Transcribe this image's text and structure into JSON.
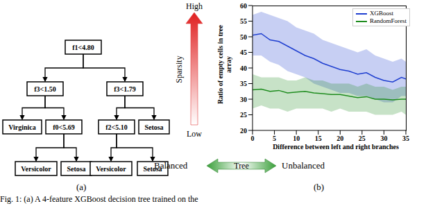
{
  "panel_labels": [
    "(a)",
    "(b)"
  ],
  "caption": "Fig. 1: (a) A 4-feature XGBoost decision tree trained on the",
  "tree": {
    "label": "f1<4.80",
    "children": [
      {
        "label": "f3<1.50",
        "children": [
          {
            "label": "Virginica"
          },
          {
            "label": "f0<5.69",
            "children": [
              {
                "label": "Versicolor"
              },
              {
                "label": "Setosa"
              }
            ]
          }
        ]
      },
      {
        "label": "f3<1.79",
        "children": [
          {
            "label": "f2<5.10",
            "children": [
              {
                "label": "Versicolor"
              },
              {
                "label": "Setosa"
              }
            ]
          },
          {
            "label": "Setosa"
          }
        ]
      }
    ]
  },
  "sparsity": {
    "label": "Sparsity",
    "high": "High",
    "low": "Low"
  },
  "balance": {
    "left": "Balanced",
    "center": "Tree",
    "right": "Unbalanced"
  },
  "chart_data": {
    "type": "line",
    "x_label": "Difference between left and right branches",
    "y_label": "Ratio of empty cells in tree array",
    "x": [
      0,
      2,
      4,
      6,
      8,
      10,
      12,
      14,
      16,
      18,
      20,
      22,
      24,
      26,
      28,
      30,
      32,
      34,
      35
    ],
    "series": [
      {
        "name": "XGBoost",
        "color": "#1f3fd0",
        "values": [
          50.5,
          51,
          49,
          48.5,
          47,
          45.5,
          44,
          43,
          41.5,
          40.5,
          39.5,
          39,
          38,
          38.5,
          37,
          36,
          35.5,
          37,
          36.5
        ],
        "lower": [
          44,
          44,
          42,
          41,
          39,
          38,
          37,
          35,
          34,
          33,
          32,
          32,
          31,
          31,
          30,
          29,
          29,
          31,
          31
        ],
        "upper": [
          57,
          58,
          57,
          56,
          55,
          53,
          52,
          51,
          49,
          48,
          47,
          46,
          45,
          46,
          44,
          43,
          42,
          43,
          42
        ]
      },
      {
        "name": "RandomForest",
        "color": "#1e8c1e",
        "values": [
          33,
          33.2,
          32.5,
          32.8,
          32,
          32.3,
          32.5,
          32,
          31.8,
          31.5,
          31.5,
          31,
          30.5,
          30.8,
          30,
          30,
          29.8,
          30,
          30
        ],
        "lower": [
          27,
          28,
          27,
          27,
          26,
          27,
          27,
          27,
          27,
          26,
          27,
          26,
          26,
          26,
          25,
          25,
          25,
          26,
          25
        ],
        "upper": [
          38,
          37,
          37,
          37,
          36,
          36,
          37,
          36,
          36,
          35,
          35,
          35,
          34,
          35,
          34,
          34,
          33,
          34,
          34
        ]
      }
    ],
    "xlim": [
      0,
      35
    ],
    "xticks": [
      0,
      5,
      10,
      15,
      20,
      25,
      30,
      35
    ],
    "ylim": [
      20,
      60
    ],
    "yticks": [
      20,
      25,
      30,
      35,
      40,
      45,
      50,
      55,
      60
    ],
    "grid": false,
    "legend": "upper right"
  }
}
